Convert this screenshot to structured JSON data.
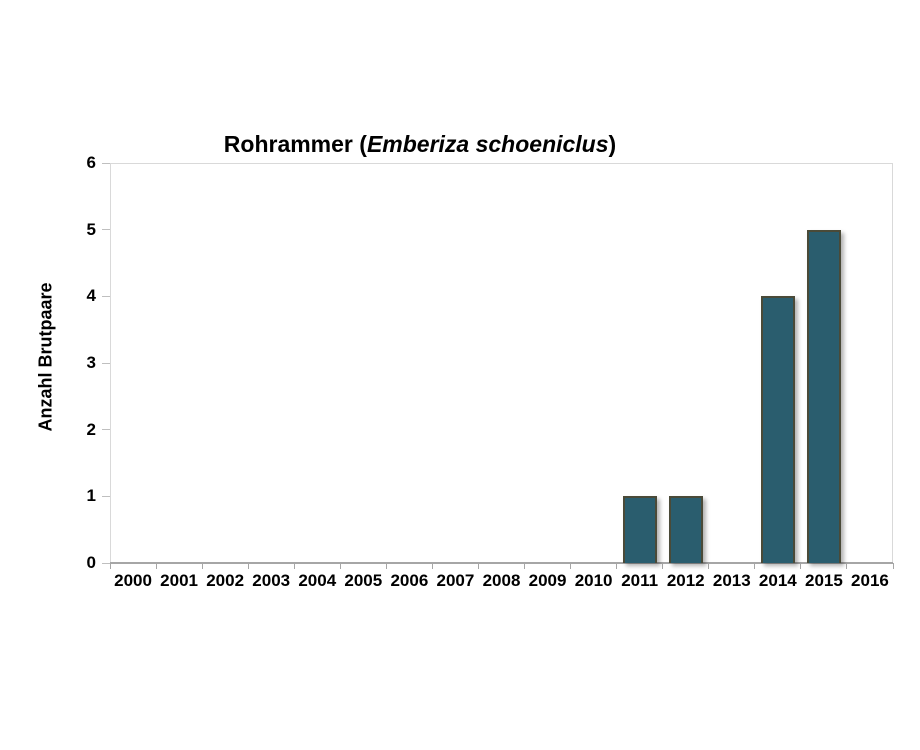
{
  "title": {
    "prefix": "Rohrammer (",
    "species": "Emberiza schoeniclus",
    "suffix": ")"
  },
  "chart_data": {
    "type": "bar",
    "title": "Rohrammer (Emberiza schoeniclus)",
    "title_italic_part": "Emberiza schoeniclus",
    "categories": [
      "2000",
      "2001",
      "2002",
      "2003",
      "2004",
      "2005",
      "2006",
      "2007",
      "2008",
      "2009",
      "2010",
      "2011",
      "2012",
      "2013",
      "2014",
      "2015",
      "2016"
    ],
    "values": [
      0,
      0,
      0,
      0,
      0,
      0,
      0,
      0,
      0,
      0,
      0,
      1,
      1,
      0,
      4,
      5,
      0
    ],
    "xlabel": "",
    "ylabel": "Anzahl Brutpaare",
    "ylim": [
      0,
      6
    ],
    "yticks": [
      0,
      1,
      2,
      3,
      4,
      5,
      6
    ],
    "grid": false,
    "legend": "none",
    "colors": {
      "bar_fill": "#2a5d6e",
      "bar_border": "#4a4a38",
      "axis_line": "#a6a6a6",
      "plot_border": "#d9d9d9",
      "tick": "#bfbfbf",
      "text": "#000000",
      "background": "#ffffff"
    }
  }
}
